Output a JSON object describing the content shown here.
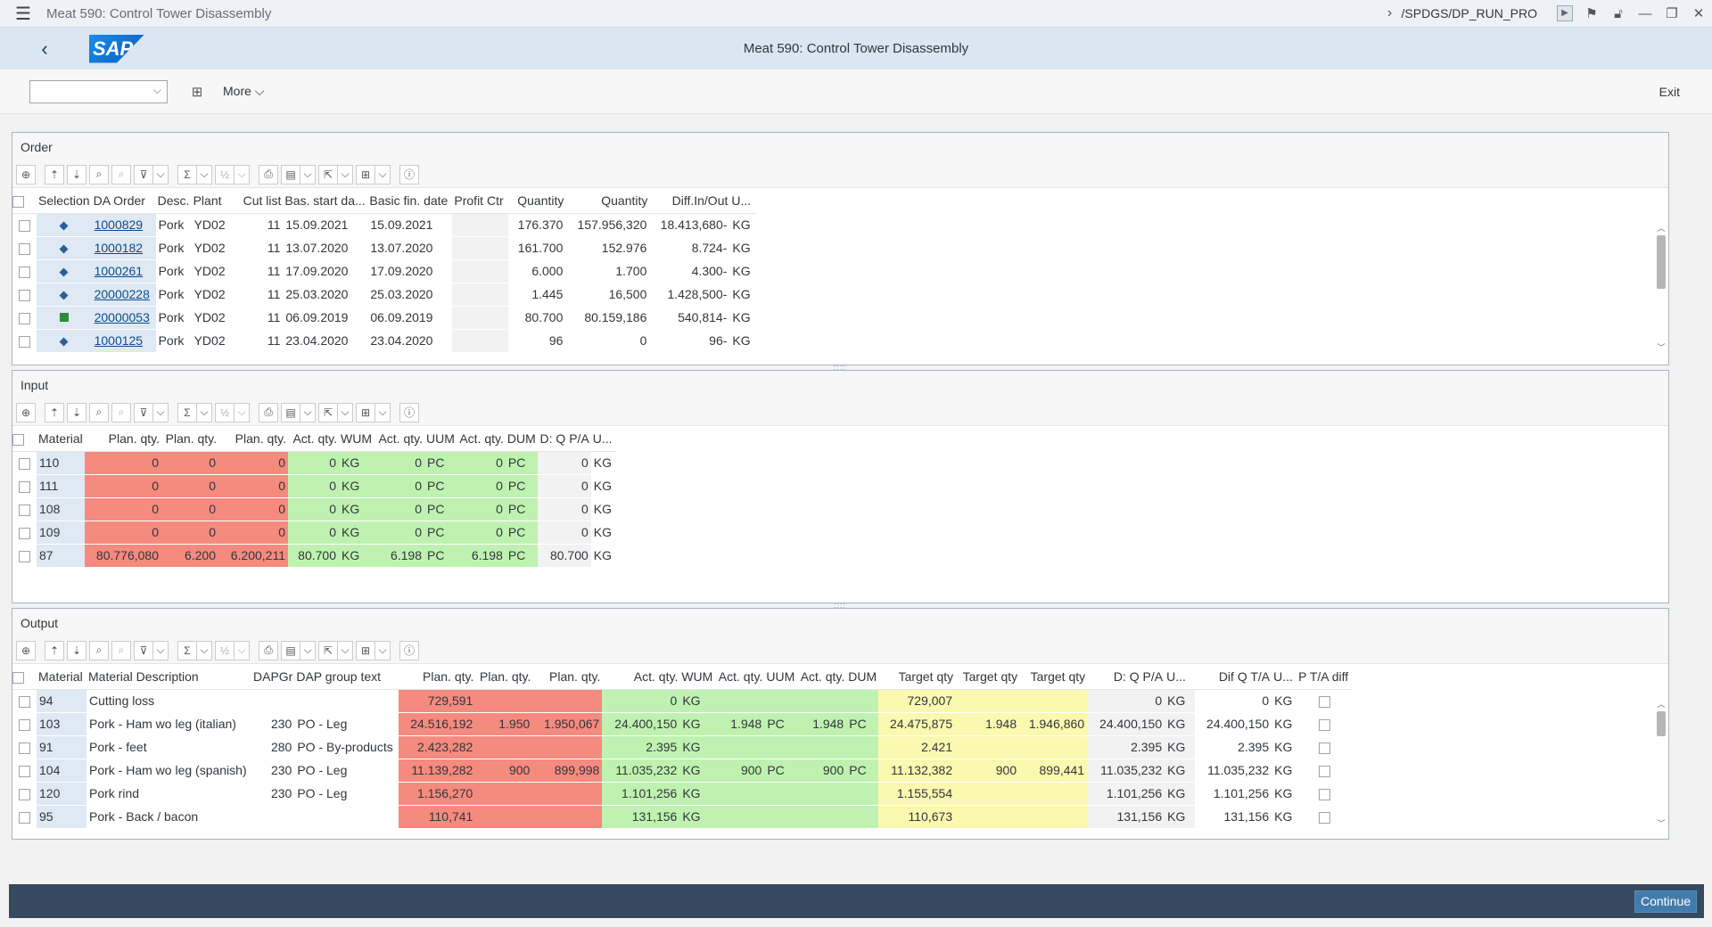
{
  "window": {
    "title": "Meat 590: Control Tower Disassembly",
    "tcode": "/SPDGS/DP_RUN_PRO"
  },
  "shell": {
    "logo_text": "SAP",
    "app_title": "Meat 590: Control Tower Disassembly"
  },
  "toolbar": {
    "combo_value": "",
    "more_label": "More",
    "exit_label": "Exit"
  },
  "order": {
    "title": "Order",
    "headers": [
      "Selection",
      "DA Order",
      "Desc.",
      "Plant",
      "Cut list",
      "Bas. start da...",
      "Basic fin. date",
      "Profit Ctr",
      "Quantity",
      "Quantity",
      "Diff.In/Out",
      "U..."
    ],
    "rows": [
      {
        "sel": "diamond",
        "order": "1000829",
        "desc": "Pork",
        "plant": "YD02",
        "cut": "11",
        "start": "15.09.2021",
        "fin": "15.09.2021",
        "pc": "",
        "q1": "176.370",
        "q2": "157.956,320",
        "diff": "18.413,680-",
        "u": "KG"
      },
      {
        "sel": "diamond",
        "order": "1000182",
        "desc": "Pork",
        "plant": "YD02",
        "cut": "11",
        "start": "13.07.2020",
        "fin": "13.07.2020",
        "pc": "",
        "q1": "161.700",
        "q2": "152.976",
        "diff": "8.724-",
        "u": "KG"
      },
      {
        "sel": "diamond",
        "order": "1000261",
        "desc": "Pork",
        "plant": "YD02",
        "cut": "11",
        "start": "17.09.2020",
        "fin": "17.09.2020",
        "pc": "",
        "q1": "6.000",
        "q2": "1.700",
        "diff": "4.300-",
        "u": "KG"
      },
      {
        "sel": "diamond",
        "order": "20000228",
        "desc": "Pork",
        "plant": "YD02",
        "cut": "11",
        "start": "25.03.2020",
        "fin": "25.03.2020",
        "pc": "",
        "q1": "1.445",
        "q2": "16,500",
        "diff": "1.428,500-",
        "u": "KG"
      },
      {
        "sel": "square",
        "order": "20000053",
        "desc": "Pork",
        "plant": "YD02",
        "cut": "11",
        "start": "06.09.2019",
        "fin": "06.09.2019",
        "pc": "",
        "q1": "80.700",
        "q2": "80.159,186",
        "diff": "540,814-",
        "u": "KG"
      },
      {
        "sel": "diamond",
        "order": "1000125",
        "desc": "Pork",
        "plant": "YD02",
        "cut": "11",
        "start": "23.04.2020",
        "fin": "23.04.2020",
        "pc": "",
        "q1": "96",
        "q2": "0",
        "diff": "96-",
        "u": "KG"
      }
    ]
  },
  "input": {
    "title": "Input",
    "headers": [
      "Material",
      "Plan. qty.",
      "Plan. qty.",
      "Plan. qty.",
      "Act. qty.",
      "WUM",
      "Act. qty.",
      "UUM",
      "Act. qty.",
      "DUM",
      "D: Q P/A",
      "U..."
    ],
    "rows": [
      {
        "mat": "110",
        "p1": "0",
        "p2": "0",
        "p3": "0",
        "a1": "0",
        "wum": "KG",
        "a2": "0",
        "uum": "PC",
        "a3": "0",
        "dum": "PC",
        "dq": "0",
        "u": "KG"
      },
      {
        "mat": "111",
        "p1": "0",
        "p2": "0",
        "p3": "0",
        "a1": "0",
        "wum": "KG",
        "a2": "0",
        "uum": "PC",
        "a3": "0",
        "dum": "PC",
        "dq": "0",
        "u": "KG"
      },
      {
        "mat": "108",
        "p1": "0",
        "p2": "0",
        "p3": "0",
        "a1": "0",
        "wum": "KG",
        "a2": "0",
        "uum": "PC",
        "a3": "0",
        "dum": "PC",
        "dq": "0",
        "u": "KG"
      },
      {
        "mat": "109",
        "p1": "0",
        "p2": "0",
        "p3": "0",
        "a1": "0",
        "wum": "KG",
        "a2": "0",
        "uum": "PC",
        "a3": "0",
        "dum": "PC",
        "dq": "0",
        "u": "KG"
      },
      {
        "mat": "87",
        "p1": "80.776,080",
        "p2": "6.200",
        "p3": "6.200,211",
        "a1": "80.700",
        "wum": "KG",
        "a2": "6.198",
        "uum": "PC",
        "a3": "6.198",
        "dum": "PC",
        "dq": "80.700",
        "u": "KG"
      }
    ]
  },
  "output": {
    "title": "Output",
    "headers": [
      "Material",
      "Material Description",
      "DAPGr",
      "DAP group text",
      "Plan. qty.",
      "Plan. qty.",
      "Plan. qty.",
      "Act. qty.",
      "WUM",
      "Act. qty.",
      "UUM",
      "Act. qty.",
      "DUM",
      "Target qty",
      "Target qty",
      "Target qty",
      "D: Q P/A",
      "U...",
      "Dif Q T/A",
      "U...",
      "P T/A diff"
    ],
    "rows": [
      {
        "mat": "94",
        "desc": "Cutting loss",
        "grp": "",
        "gtext": "",
        "p1": "729,591",
        "p2": "",
        "p3": "",
        "a1": "0",
        "wum": "KG",
        "a2": "",
        "uum": "",
        "a3": "",
        "dum": "",
        "t1": "729,007",
        "t2": "",
        "t3": "",
        "dq": "0",
        "u1": "KG",
        "dt": "0",
        "u2": "KG"
      },
      {
        "mat": "103",
        "desc": "Pork - Ham wo leg (italian)",
        "grp": "230",
        "gtext": "PO - Leg",
        "p1": "24.516,192",
        "p2": "1.950",
        "p3": "1.950,067",
        "a1": "24.400,150",
        "wum": "KG",
        "a2": "1.948",
        "uum": "PC",
        "a3": "1.948",
        "dum": "PC",
        "t1": "24.475,875",
        "t2": "1.948",
        "t3": "1.946,860",
        "dq": "24.400,150",
        "u1": "KG",
        "dt": "24.400,150",
        "u2": "KG"
      },
      {
        "mat": "91",
        "desc": "Pork - feet",
        "grp": "280",
        "gtext": "PO - By-products",
        "p1": "2.423,282",
        "p2": "",
        "p3": "",
        "a1": "2.395",
        "wum": "KG",
        "a2": "",
        "uum": "",
        "a3": "",
        "dum": "",
        "t1": "2.421",
        "t2": "",
        "t3": "",
        "dq": "2.395",
        "u1": "KG",
        "dt": "2.395",
        "u2": "KG"
      },
      {
        "mat": "104",
        "desc": "Pork - Ham wo leg (spanish)",
        "grp": "230",
        "gtext": "PO - Leg",
        "p1": "11.139,282",
        "p2": "900",
        "p3": "899,998",
        "a1": "11.035,232",
        "wum": "KG",
        "a2": "900",
        "uum": "PC",
        "a3": "900",
        "dum": "PC",
        "t1": "11.132,382",
        "t2": "900",
        "t3": "899,441",
        "dq": "11.035,232",
        "u1": "KG",
        "dt": "11.035,232",
        "u2": "KG"
      },
      {
        "mat": "120",
        "desc": "Pork rind",
        "grp": "230",
        "gtext": "PO - Leg",
        "p1": "1.156,270",
        "p2": "",
        "p3": "",
        "a1": "1.101,256",
        "wum": "KG",
        "a2": "",
        "uum": "",
        "a3": "",
        "dum": "",
        "t1": "1.155,554",
        "t2": "",
        "t3": "",
        "dq": "1.101,256",
        "u1": "KG",
        "dt": "1.101,256",
        "u2": "KG"
      },
      {
        "mat": "95",
        "desc": "Pork - Back / bacon",
        "grp": "",
        "gtext": "",
        "p1": "110,741",
        "p2": "",
        "p3": "",
        "a1": "131,156",
        "wum": "KG",
        "a2": "",
        "uum": "",
        "a3": "",
        "dum": "",
        "t1": "110,673",
        "t2": "",
        "t3": "",
        "dq": "131,156",
        "u1": "KG",
        "dt": "131,156",
        "u2": "KG"
      }
    ]
  },
  "footer": {
    "continue_label": "Continue"
  },
  "colors": {
    "shell": "#dae6f2",
    "footer": "#354a5f",
    "red_cell": "#f58a7f",
    "green_cell": "#bff2b0",
    "yellow_cell": "#fbf8b0",
    "key_cell": "#dfe9f4"
  }
}
